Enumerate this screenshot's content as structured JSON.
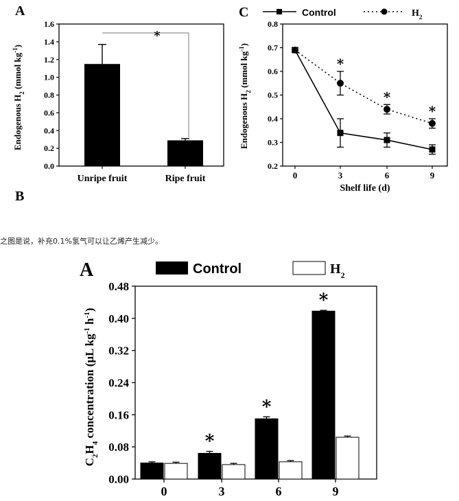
{
  "caption": "之图是说，补充0.1%氢气可以让乙烯产生减少。",
  "chart_data": [
    {
      "type": "bar",
      "panel_label": "A",
      "ylabel_main": "Endogenous H",
      "ylabel_sub": "2",
      "ylabel_unit": " (mmol kg",
      "ylabel_sup": "-1",
      "ylabel_end": ")",
      "categories": [
        "Unripe fruit",
        "Ripe fruit"
      ],
      "values": [
        1.15,
        0.29
      ],
      "errors": [
        0.22,
        0.02
      ],
      "ylim": [
        0,
        1.6
      ],
      "yticks": [
        "0.0",
        "0.2",
        "0.4",
        "0.6",
        "0.8",
        "1.0",
        "1.2",
        "1.4",
        "1.6"
      ],
      "significance": "*"
    },
    {
      "type": "line",
      "panel_label": "C",
      "xlabel": "Shelf life (d)",
      "ylabel_main": "Endogenous H",
      "ylabel_sub": "2",
      "ylabel_unit": " (mmol kg",
      "ylabel_sup": "-1",
      "ylabel_end": ")",
      "x": [
        0,
        3,
        6,
        9
      ],
      "xticks": [
        "0",
        "3",
        "6",
        "9"
      ],
      "ylim": [
        0.2,
        0.8
      ],
      "yticks": [
        "0.2",
        "0.3",
        "0.4",
        "0.5",
        "0.6",
        "0.7",
        "0.8"
      ],
      "series": [
        {
          "name": "Control",
          "values": [
            0.69,
            0.34,
            0.31,
            0.27
          ],
          "errors": [
            0.01,
            0.06,
            0.03,
            0.02
          ]
        },
        {
          "name": "H",
          "name_sub": "2",
          "values": [
            0.69,
            0.55,
            0.44,
            0.38
          ],
          "errors": [
            0.01,
            0.05,
            0.02,
            0.02
          ]
        }
      ],
      "significance": [
        "",
        "*",
        "*",
        "*"
      ]
    },
    {
      "type": "bar",
      "panel_label": "A",
      "ylabel_c": "C",
      "ylabel_c_sub": "2",
      "ylabel_h": "H",
      "ylabel_h_sub": "4",
      "ylabel_rest": " concentration (μL kg",
      "ylabel_sup1": "-1",
      "ylabel_mid": " h",
      "ylabel_sup2": "-1",
      "ylabel_end": ")",
      "categories": [
        "0",
        "3",
        "6",
        "9"
      ],
      "ylim": [
        0,
        0.48
      ],
      "yticks": [
        "0.00",
        "0.08",
        "0.16",
        "0.24",
        "0.32",
        "0.40",
        "0.48"
      ],
      "series": [
        {
          "name": "Control",
          "values": [
            0.04,
            0.064,
            0.15,
            0.418
          ],
          "errors": [
            0.003,
            0.005,
            0.005,
            0.002
          ]
        },
        {
          "name": "H",
          "name_sub": "2",
          "values": [
            0.039,
            0.036,
            0.043,
            0.104
          ],
          "errors": [
            0.003,
            0.003,
            0.003,
            0.003
          ]
        }
      ],
      "significance": [
        "",
        "*",
        "*",
        "*"
      ]
    }
  ],
  "panel_b_label": "B"
}
